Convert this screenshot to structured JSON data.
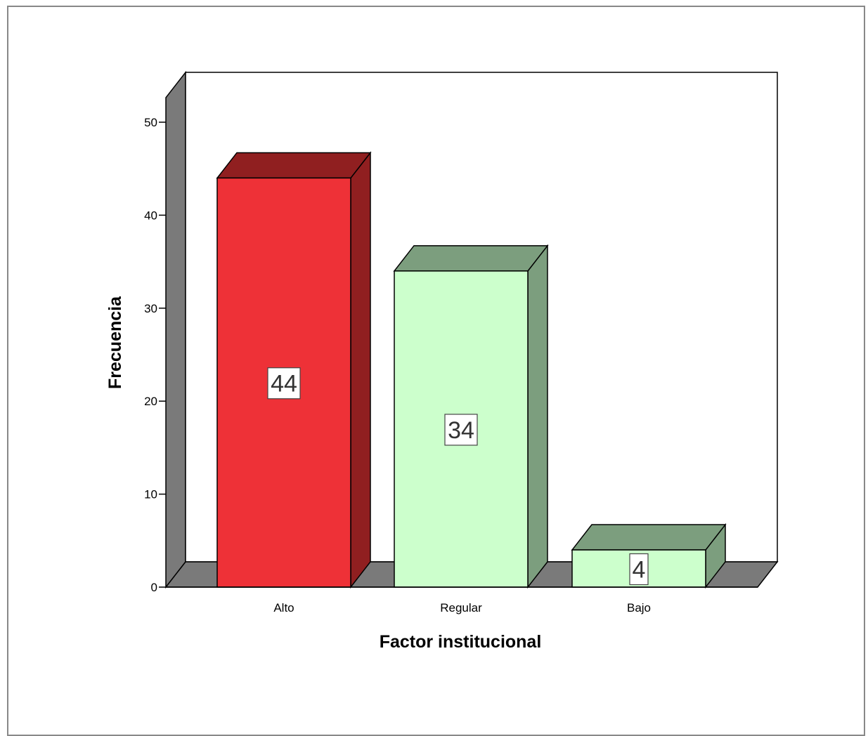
{
  "chart_data": {
    "type": "bar",
    "categories": [
      "Alto",
      "Regular",
      "Bajo"
    ],
    "values": [
      44,
      34,
      4
    ],
    "data_labels": [
      "44",
      "34",
      "4"
    ],
    "xlabel": "Factor institucional",
    "ylabel": "Frecuencia",
    "ylim": [
      0,
      50
    ],
    "yticks": [
      "0",
      "10",
      "20",
      "30",
      "40",
      "50"
    ],
    "style": "3d",
    "grid": false,
    "legend": "none",
    "colors": {
      "Alto": {
        "front": "#ee3137",
        "side": "#901f20"
      },
      "Regular": {
        "front": "#ccffcc",
        "side": "#7c9e7e"
      },
      "Bajo": {
        "front": "#ccffcc",
        "side": "#7c9e7e"
      },
      "wall": "#7a7a7a"
    }
  }
}
